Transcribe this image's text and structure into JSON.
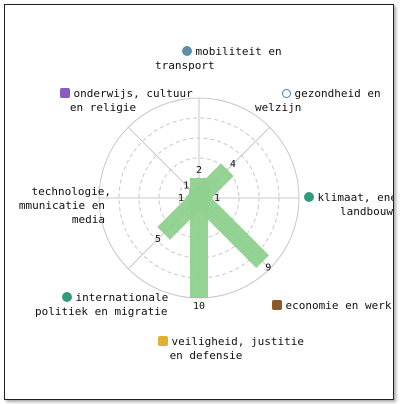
{
  "chart_data": {
    "type": "radar-bar",
    "categories": [
      "mobiliteit en transport",
      "gezondheid en welzijn",
      "klimaat, energie en landbouw",
      "economie en werk",
      "veiligheid, justitie en defensie",
      "internationale politiek en migratie",
      "technologie, communicatie en media",
      "onderwijs, cultuur en religie"
    ],
    "values": [
      2,
      4,
      1,
      9,
      10,
      5,
      1,
      1
    ],
    "value_labels": [
      "2",
      "4",
      "1",
      "9",
      "10",
      "5",
      "1",
      "1"
    ],
    "rmax": 10,
    "grid_rings": 5,
    "bar_color": "#8fd18f",
    "grid_color": "#c8c8c8"
  },
  "labels": {
    "mobiliteit": "mobiliteit en\ntransport",
    "gezondheid": "gezondheid en\nwelzijn",
    "klimaat": "klimaat, ener\nlandbouw",
    "economie": "economie en werk",
    "veiligheid": "veiligheid, justitie\nen defensie",
    "internationale": "internationale\npolitiek en migratie",
    "technologie": "technologie,\nmmunicatie en\nmedia",
    "onderwijs": "onderwijs, cultuur\nen religie"
  },
  "icons": {
    "mobiliteit": {
      "name": "person-icon",
      "color": "#5b8fa8"
    },
    "gezondheid": {
      "name": "stethoscope-icon",
      "color": "#4a78c8"
    },
    "klimaat": {
      "name": "globe-icon",
      "color": "#2e9c7a"
    },
    "economie": {
      "name": "briefcase-icon",
      "color": "#8b5a2b"
    },
    "veiligheid": {
      "name": "lock-icon",
      "color": "#e0b030"
    },
    "internationale": {
      "name": "globe-icon",
      "color": "#2e9c7a"
    },
    "onderwijs": {
      "name": "theater-icon",
      "color": "#8a5cc0"
    }
  }
}
